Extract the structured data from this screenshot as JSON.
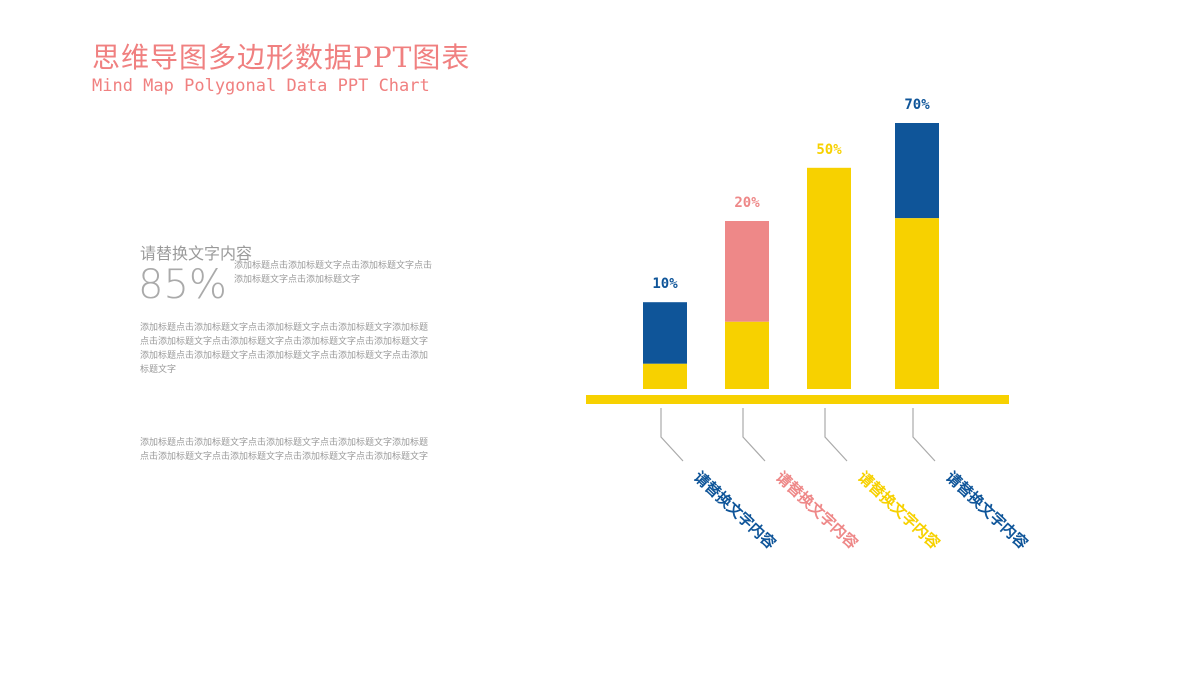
{
  "header": {
    "title": "思维导图多边形数据PPT图表",
    "subtitle": "Mind Map Polygonal Data PPT Chart"
  },
  "left_panel": {
    "heading": "请替换文字内容",
    "big_value": "85%",
    "side_note": "添加标题点击添加标题文字点击添加标题文字点击添加标题文字点击添加标题文字",
    "paragraph1": "添加标题点击添加标题文字点击添加标题文字点击添加标题文字添加标题点击添加标题文字点击添加标题文字点击添加标题文字点击添加标题文字添加标题点击添加标题文字点击添加标题文字点击添加标题文字点击添加标题文字",
    "paragraph2": "添加标题点击添加标题文字点击添加标题文字点击添加标题文字添加标题点击添加标题文字点击添加标题文字点击添加标题文字点击添加标题文字"
  },
  "colors": {
    "accent": "#f08080",
    "blue": "#0f5599",
    "pink": "#ee8888",
    "yellow": "#f7d100",
    "leader": "#aaaaaa",
    "text_gray": "#9a9a9a"
  },
  "chart_data": {
    "type": "bar",
    "stacked": true,
    "bars": [
      {
        "value_label": "10%",
        "category": "请替换文字内容",
        "segments": [
          {
            "color": "blue",
            "fraction": 0.22
          },
          {
            "color": "yellow",
            "fraction": 0.09
          }
        ],
        "label_color": "blue"
      },
      {
        "value_label": "20%",
        "category": "请替换文字内容",
        "segments": [
          {
            "color": "pink",
            "fraction": 0.36
          },
          {
            "color": "yellow",
            "fraction": 0.24
          }
        ],
        "label_color": "pink"
      },
      {
        "value_label": "50%",
        "category": "请替换文字内容",
        "segments": [
          {
            "color": "yellow",
            "fraction": 0.79
          }
        ],
        "label_color": "yellow"
      },
      {
        "value_label": "70%",
        "category": "请替换文字内容",
        "segments": [
          {
            "color": "blue",
            "fraction": 0.34
          },
          {
            "color": "yellow",
            "fraction": 0.61
          }
        ],
        "label_color": "blue"
      }
    ]
  }
}
